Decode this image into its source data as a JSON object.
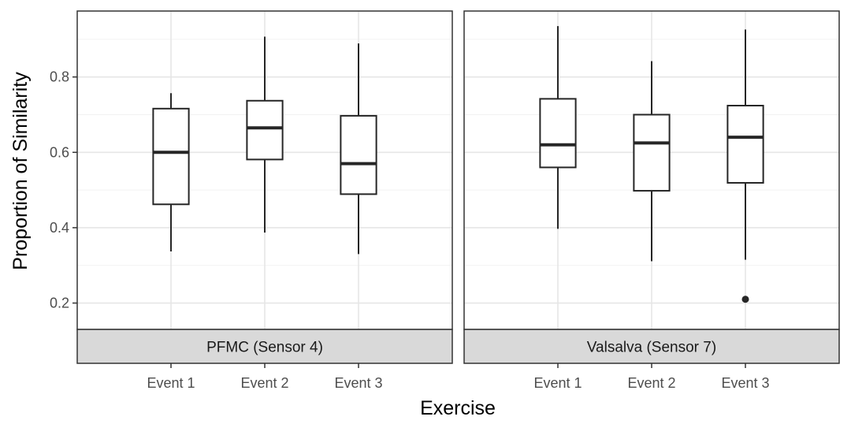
{
  "chart_data": {
    "type": "boxplot",
    "xlabel": "Exercise",
    "ylabel": "Proportion of Similarity",
    "ylim": [
      0.13,
      0.975
    ],
    "y_ticks": [
      0.2,
      0.4,
      0.6,
      0.8
    ],
    "y_tick_labels": [
      "0.2",
      "0.4",
      "0.6",
      "0.8"
    ],
    "categories": [
      "Event 1",
      "Event 2",
      "Event 3"
    ],
    "grid": true,
    "facets": [
      {
        "strip_label": "PFMC (Sensor 4)",
        "boxes": [
          {
            "category": "Event 1",
            "min": 0.337,
            "q1": 0.462,
            "median": 0.6,
            "q3": 0.716,
            "max": 0.757,
            "outliers": []
          },
          {
            "category": "Event 2",
            "min": 0.387,
            "q1": 0.581,
            "median": 0.665,
            "q3": 0.737,
            "max": 0.907,
            "outliers": []
          },
          {
            "category": "Event 3",
            "min": 0.33,
            "q1": 0.489,
            "median": 0.57,
            "q3": 0.697,
            "max": 0.889,
            "outliers": []
          }
        ]
      },
      {
        "strip_label": "Valsalva (Sensor 7)",
        "boxes": [
          {
            "category": "Event 1",
            "min": 0.397,
            "q1": 0.56,
            "median": 0.62,
            "q3": 0.742,
            "max": 0.935,
            "outliers": []
          },
          {
            "category": "Event 2",
            "min": 0.311,
            "q1": 0.498,
            "median": 0.625,
            "q3": 0.7,
            "max": 0.842,
            "outliers": []
          },
          {
            "category": "Event 3",
            "min": 0.315,
            "q1": 0.519,
            "median": 0.64,
            "q3": 0.724,
            "max": 0.926,
            "outliers": [
              0.21
            ]
          }
        ]
      }
    ]
  }
}
